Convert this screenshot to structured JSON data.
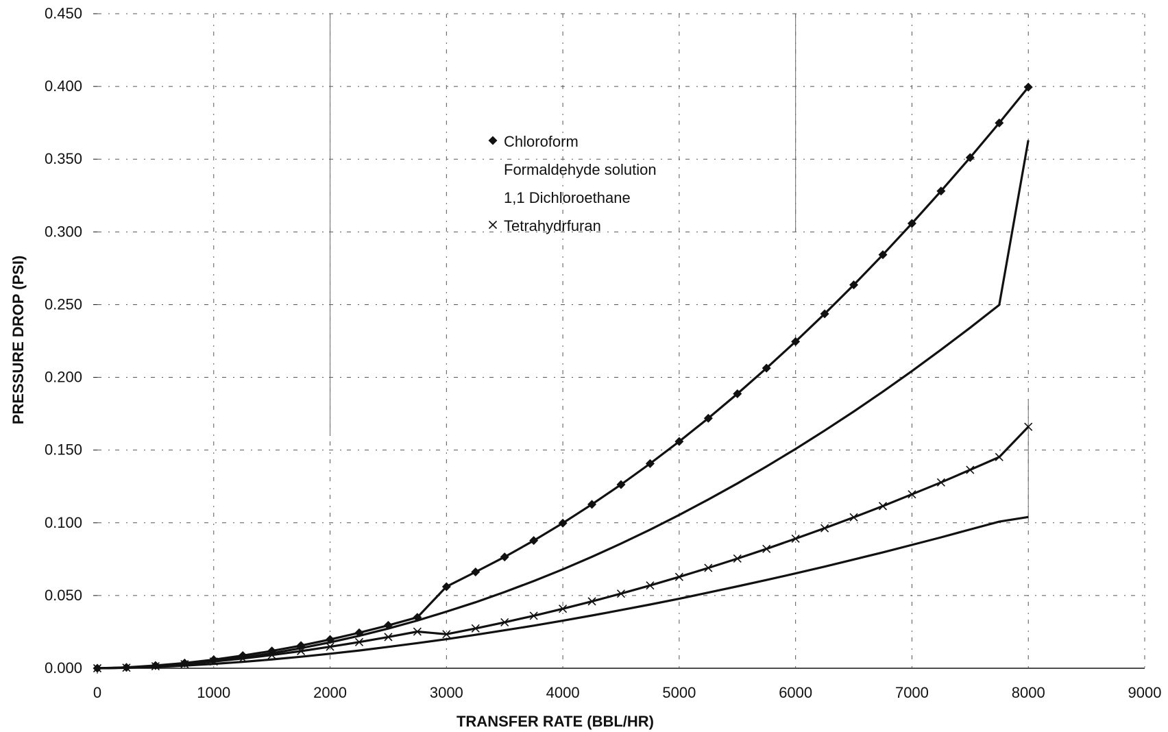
{
  "chart_data": {
    "type": "line",
    "title": "",
    "xlabel": "TRANSFER RATE (BBL/HR)",
    "ylabel": "PRESSURE DROP (PSI)",
    "xlim": [
      0,
      9000
    ],
    "ylim": [
      0,
      0.45
    ],
    "x_ticks": [
      0,
      1000,
      2000,
      3000,
      4000,
      5000,
      6000,
      7000,
      8000,
      9000
    ],
    "x_tick_labels": [
      "0",
      "1000",
      "2000",
      "3000",
      "4000",
      "5000",
      "6000",
      "7000",
      "8000",
      "9000"
    ],
    "y_ticks": [
      0,
      0.05,
      0.1,
      0.15,
      0.2,
      0.25,
      0.3,
      0.35,
      0.4,
      0.45
    ],
    "y_tick_labels": [
      "0.000",
      "0.050",
      "0.100",
      "0.150",
      "0.200",
      "0.250",
      "0.300",
      "0.350",
      "0.400",
      "0.450"
    ],
    "grid": true,
    "legend_position": "upper-center",
    "x": [
      0,
      250,
      500,
      750,
      1000,
      1250,
      1500,
      1750,
      2000,
      2250,
      2500,
      2750,
      3000,
      3250,
      3500,
      3750,
      4000,
      4250,
      4500,
      4750,
      5000,
      5250,
      5500,
      5750,
      6000,
      6250,
      6500,
      6750,
      7000,
      7250,
      7500,
      7750,
      8000
    ],
    "series": [
      {
        "name": "Chloroform",
        "marker": "diamond",
        "values": [
          0.0,
          0.0006,
          0.0019,
          0.0036,
          0.0059,
          0.0087,
          0.0119,
          0.0156,
          0.0198,
          0.0244,
          0.0295,
          0.035,
          0.0561,
          0.0662,
          0.0765,
          0.0878,
          0.0998,
          0.1127,
          0.1263,
          0.1407,
          0.1559,
          0.1719,
          0.1887,
          0.2063,
          0.2246,
          0.2437,
          0.2636,
          0.2843,
          0.3058,
          0.3281,
          0.3511,
          0.3749,
          0.3995
        ]
      },
      {
        "name": "Formaldehyde solution",
        "marker": "none",
        "values": [
          0.0,
          0.0004,
          0.0013,
          0.0028,
          0.0048,
          0.0073,
          0.0103,
          0.0138,
          0.0178,
          0.0223,
          0.0273,
          0.0328,
          0.0389,
          0.0454,
          0.0524,
          0.06,
          0.068,
          0.0766,
          0.0857,
          0.0953,
          0.1054,
          0.116,
          0.1271,
          0.1387,
          0.1508,
          0.1634,
          0.1765,
          0.1902,
          0.2043,
          0.219,
          0.2341,
          0.2498,
          0.363
        ]
      },
      {
        "name": "1,1 Dichloroethane",
        "marker": "none",
        "values": [
          0.0,
          0.0003,
          0.0009,
          0.0018,
          0.003,
          0.0044,
          0.0061,
          0.0079,
          0.01,
          0.0122,
          0.0147,
          0.0173,
          0.02,
          0.023,
          0.0261,
          0.0293,
          0.0327,
          0.0363,
          0.04,
          0.0438,
          0.0478,
          0.052,
          0.0563,
          0.0607,
          0.0652,
          0.0699,
          0.0748,
          0.0797,
          0.0848,
          0.09,
          0.0954,
          0.1008,
          0.104
        ]
      },
      {
        "name": "Tetrahydrfuran",
        "marker": "x",
        "values": [
          0.0,
          0.0004,
          0.0014,
          0.0028,
          0.0046,
          0.0067,
          0.0091,
          0.0118,
          0.0148,
          0.018,
          0.0215,
          0.0252,
          0.0234,
          0.0274,
          0.0316,
          0.0361,
          0.0409,
          0.046,
          0.0513,
          0.0569,
          0.0628,
          0.069,
          0.0754,
          0.0821,
          0.0891,
          0.0963,
          0.1038,
          0.1115,
          0.1196,
          0.1278,
          0.1364,
          0.1452,
          0.166
        ]
      }
    ]
  }
}
